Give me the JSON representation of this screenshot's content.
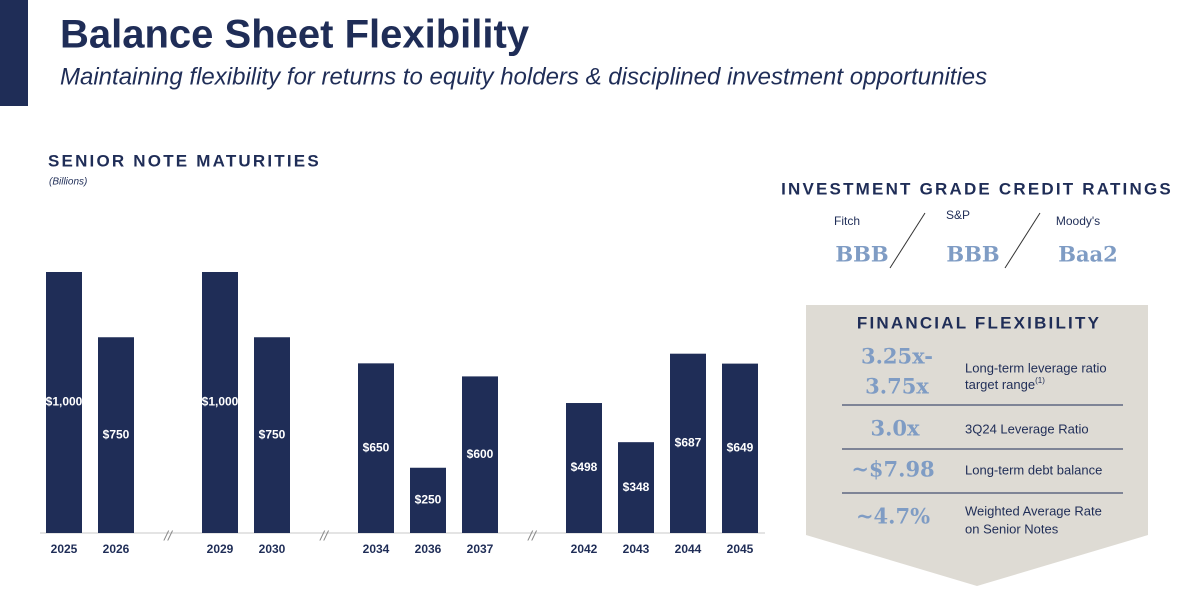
{
  "header": {
    "title": "Balance Sheet Flexibility",
    "subtitle": "Maintaining flexibility for returns to equity holders & disciplined investment opportunities"
  },
  "chart_data": {
    "type": "bar",
    "title": "SENIOR NOTE MATURITIES",
    "subtitle": "(Billions)",
    "categories": [
      "2025",
      "2026",
      "2029",
      "2030",
      "2034",
      "2036",
      "2037",
      "2042",
      "2043",
      "2044",
      "2045"
    ],
    "values": [
      1000,
      750,
      1000,
      750,
      650,
      250,
      600,
      498,
      348,
      687,
      649
    ],
    "value_labels": [
      "$1,000",
      "$750",
      "$1,000",
      "$750",
      "$650",
      "$250",
      "$600",
      "$498",
      "$348",
      "$687",
      "$649"
    ],
    "color": "#1f2d57",
    "ylim": [
      0,
      1000
    ],
    "break_label": "//",
    "break_after": [
      1,
      3,
      6
    ]
  },
  "ratings": {
    "title": "INVESTMENT GRADE CREDIT RATINGS",
    "agencies": [
      {
        "name": "Fitch",
        "rating": "BBB"
      },
      {
        "name": "S&P",
        "rating": "BBB"
      },
      {
        "name": "Moody's",
        "rating": "Baa2"
      }
    ]
  },
  "flexibility": {
    "title": "FINANCIAL FLEXIBILITY",
    "rows": [
      {
        "value": [
          "3.25x-",
          "3.75x"
        ],
        "description": [
          "Long-term leverage ratio",
          "target range"
        ],
        "footnote": "(1)"
      },
      {
        "value": [
          "3.0x"
        ],
        "description": [
          "3Q24 Leverage Ratio"
        ]
      },
      {
        "value": [
          "~$7.98"
        ],
        "description": [
          "Long-term debt balance"
        ]
      },
      {
        "value": [
          "~4.7%"
        ],
        "description": [
          "Weighted Average Rate",
          "on Senior Notes"
        ]
      }
    ]
  }
}
